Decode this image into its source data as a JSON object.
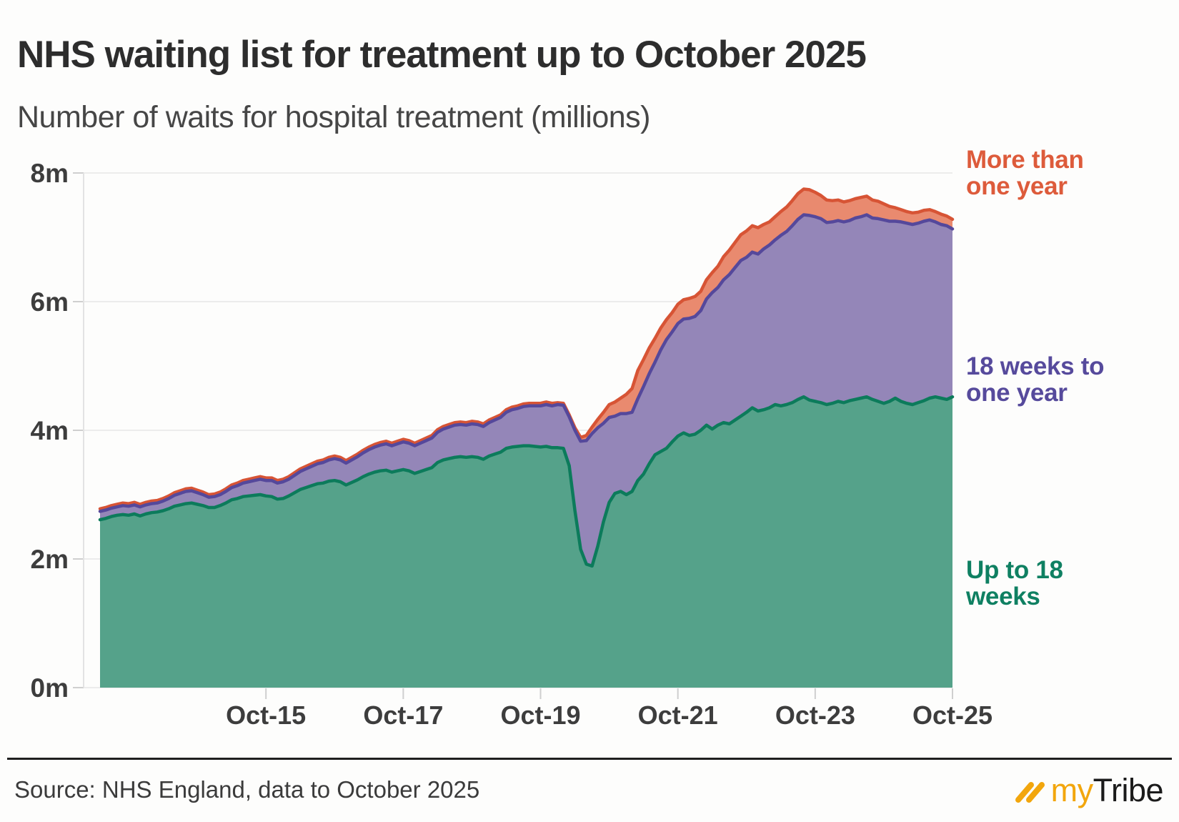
{
  "header": {
    "title": "NHS waiting list for treatment up to October 2025",
    "subtitle": "Number of waits for hospital treatment (millions)"
  },
  "chart_data": {
    "type": "area",
    "stacked": true,
    "title": "NHS waiting list for treatment up to October 2025",
    "ylabel": "Number of waits for hospital treatment (millions)",
    "ylim": [
      0,
      8
    ],
    "grid": true,
    "x_range": [
      "2013-05",
      "2025-10"
    ],
    "months_span": 150,
    "y_ticks": [
      {
        "label": "0m",
        "value": 0
      },
      {
        "label": "2m",
        "value": 2
      },
      {
        "label": "4m",
        "value": 4
      },
      {
        "label": "6m",
        "value": 6
      },
      {
        "label": "8m",
        "value": 8
      }
    ],
    "x_ticks": [
      {
        "label": "Oct-15",
        "month_index": 29
      },
      {
        "label": "Oct-17",
        "month_index": 53
      },
      {
        "label": "Oct-19",
        "month_index": 77
      },
      {
        "label": "Oct-21",
        "month_index": 101
      },
      {
        "label": "Oct-23",
        "month_index": 125
      },
      {
        "label": "Oct-25",
        "month_index": 149
      }
    ],
    "series": [
      {
        "name": "Up to 18 weeks",
        "line_color": "#0c7b5b",
        "fill_color": "#55a28a",
        "values": [
          2.61,
          2.63,
          2.66,
          2.68,
          2.69,
          2.68,
          2.7,
          2.67,
          2.7,
          2.72,
          2.73,
          2.75,
          2.78,
          2.82,
          2.84,
          2.86,
          2.87,
          2.85,
          2.83,
          2.8,
          2.8,
          2.83,
          2.87,
          2.92,
          2.94,
          2.97,
          2.98,
          2.99,
          3.0,
          2.98,
          2.97,
          2.93,
          2.94,
          2.98,
          3.03,
          3.08,
          3.11,
          3.14,
          3.17,
          3.18,
          3.21,
          3.22,
          3.2,
          3.15,
          3.19,
          3.23,
          3.28,
          3.32,
          3.35,
          3.37,
          3.38,
          3.35,
          3.37,
          3.39,
          3.37,
          3.33,
          3.36,
          3.39,
          3.42,
          3.5,
          3.54,
          3.56,
          3.58,
          3.59,
          3.58,
          3.59,
          3.58,
          3.55,
          3.6,
          3.63,
          3.66,
          3.72,
          3.74,
          3.75,
          3.76,
          3.76,
          3.75,
          3.74,
          3.75,
          3.73,
          3.73,
          3.72,
          3.45,
          2.75,
          2.15,
          1.92,
          1.89,
          2.2,
          2.58,
          2.88,
          3.02,
          3.05,
          3.0,
          3.05,
          3.22,
          3.32,
          3.48,
          3.62,
          3.67,
          3.72,
          3.82,
          3.91,
          3.96,
          3.92,
          3.94,
          4.0,
          4.08,
          4.02,
          4.08,
          4.12,
          4.1,
          4.16,
          4.22,
          4.28,
          4.35,
          4.3,
          4.32,
          4.35,
          4.4,
          4.38,
          4.4,
          4.43,
          4.48,
          4.52,
          4.47,
          4.45,
          4.43,
          4.4,
          4.42,
          4.45,
          4.43,
          4.46,
          4.48,
          4.5,
          4.52,
          4.48,
          4.45,
          4.42,
          4.45,
          4.5,
          4.45,
          4.42,
          4.4,
          4.43,
          4.46,
          4.5,
          4.52,
          4.5,
          4.48,
          4.52
        ]
      },
      {
        "name": "18 weeks to one year",
        "line_color": "#55489b",
        "fill_color": "#9486b8",
        "values": [
          0.13,
          0.13,
          0.13,
          0.13,
          0.14,
          0.14,
          0.14,
          0.14,
          0.14,
          0.14,
          0.14,
          0.15,
          0.16,
          0.17,
          0.18,
          0.19,
          0.19,
          0.18,
          0.17,
          0.16,
          0.17,
          0.17,
          0.18,
          0.19,
          0.2,
          0.21,
          0.22,
          0.23,
          0.24,
          0.24,
          0.25,
          0.25,
          0.26,
          0.26,
          0.27,
          0.28,
          0.29,
          0.3,
          0.31,
          0.32,
          0.33,
          0.34,
          0.34,
          0.34,
          0.35,
          0.36,
          0.37,
          0.38,
          0.39,
          0.4,
          0.41,
          0.41,
          0.42,
          0.43,
          0.43,
          0.43,
          0.44,
          0.45,
          0.46,
          0.47,
          0.48,
          0.49,
          0.5,
          0.5,
          0.5,
          0.51,
          0.51,
          0.51,
          0.52,
          0.53,
          0.54,
          0.56,
          0.58,
          0.59,
          0.61,
          0.62,
          0.63,
          0.64,
          0.65,
          0.65,
          0.67,
          0.67,
          0.76,
          1.25,
          1.68,
          1.92,
          2.06,
          1.84,
          1.53,
          1.32,
          1.2,
          1.21,
          1.26,
          1.23,
          1.27,
          1.36,
          1.4,
          1.44,
          1.58,
          1.69,
          1.71,
          1.75,
          1.77,
          1.82,
          1.83,
          1.86,
          1.96,
          2.12,
          2.14,
          2.22,
          2.32,
          2.37,
          2.42,
          2.41,
          2.42,
          2.44,
          2.5,
          2.53,
          2.56,
          2.65,
          2.69,
          2.75,
          2.8,
          2.83,
          2.87,
          2.87,
          2.86,
          2.83,
          2.82,
          2.81,
          2.81,
          2.8,
          2.82,
          2.82,
          2.83,
          2.82,
          2.84,
          2.85,
          2.8,
          2.75,
          2.79,
          2.8,
          2.8,
          2.79,
          2.79,
          2.77,
          2.72,
          2.7,
          2.7,
          2.61
        ]
      },
      {
        "name": "More than one year",
        "line_color": "#d75435",
        "fill_color": "#e98a6f",
        "values": [
          0.04,
          0.04,
          0.04,
          0.04,
          0.04,
          0.04,
          0.04,
          0.04,
          0.04,
          0.04,
          0.04,
          0.04,
          0.04,
          0.04,
          0.04,
          0.04,
          0.04,
          0.04,
          0.04,
          0.04,
          0.04,
          0.04,
          0.04,
          0.04,
          0.04,
          0.04,
          0.04,
          0.04,
          0.04,
          0.04,
          0.04,
          0.04,
          0.04,
          0.04,
          0.04,
          0.04,
          0.04,
          0.04,
          0.04,
          0.04,
          0.04,
          0.04,
          0.04,
          0.04,
          0.04,
          0.04,
          0.04,
          0.04,
          0.04,
          0.04,
          0.04,
          0.04,
          0.04,
          0.04,
          0.04,
          0.04,
          0.04,
          0.04,
          0.04,
          0.04,
          0.04,
          0.04,
          0.04,
          0.04,
          0.04,
          0.04,
          0.04,
          0.04,
          0.04,
          0.04,
          0.04,
          0.04,
          0.04,
          0.04,
          0.04,
          0.04,
          0.04,
          0.04,
          0.04,
          0.04,
          0.03,
          0.03,
          0.03,
          0.04,
          0.06,
          0.08,
          0.1,
          0.13,
          0.17,
          0.2,
          0.22,
          0.24,
          0.3,
          0.37,
          0.44,
          0.42,
          0.4,
          0.37,
          0.34,
          0.31,
          0.3,
          0.3,
          0.3,
          0.31,
          0.31,
          0.3,
          0.3,
          0.31,
          0.33,
          0.36,
          0.38,
          0.39,
          0.4,
          0.41,
          0.41,
          0.41,
          0.38,
          0.36,
          0.36,
          0.37,
          0.38,
          0.39,
          0.4,
          0.4,
          0.4,
          0.38,
          0.36,
          0.35,
          0.33,
          0.32,
          0.31,
          0.31,
          0.3,
          0.3,
          0.29,
          0.28,
          0.27,
          0.25,
          0.23,
          0.21,
          0.19,
          0.18,
          0.18,
          0.17,
          0.17,
          0.16,
          0.16,
          0.16,
          0.15,
          0.15
        ]
      }
    ],
    "axis_colors": {
      "grid": "#ececec",
      "axis": "#e3e3e3",
      "tick": "#cfcfcf",
      "tick_text": "#3d3d3d"
    }
  },
  "legend": {
    "items": [
      {
        "label": "More than\none year",
        "color": "#dd5b3b"
      },
      {
        "label": "18 weeks to\none year",
        "color": "#564a9c"
      },
      {
        "label": "Up to 18\nweeks",
        "color": "#0f8062"
      }
    ]
  },
  "footer": {
    "source": "Source: NHS England, data to October 2025",
    "logo_my": "my",
    "logo_tribe": "Tribe",
    "logo_accent": "#f2a60d"
  }
}
